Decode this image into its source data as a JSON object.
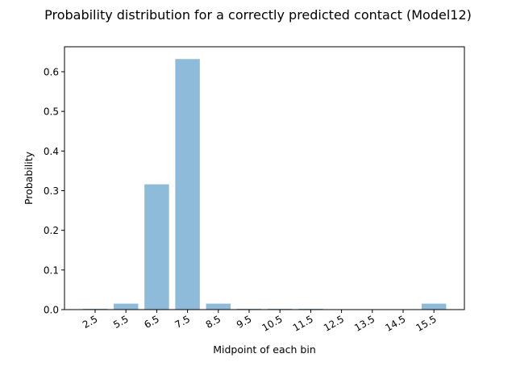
{
  "chart_data": {
    "type": "bar",
    "title": "Probability distribution for a correctly predicted contact (Model12)",
    "xlabel": "Midpoint of each bin",
    "ylabel": "Probability",
    "categories": [
      "2.5",
      "5.5",
      "6.5",
      "7.5",
      "8.5",
      "9.5",
      "10.5",
      "11.5",
      "12.5",
      "13.5",
      "14.5",
      "15.5"
    ],
    "values": [
      0.002,
      0.015,
      0.316,
      0.632,
      0.015,
      0.002,
      0.002,
      0.002,
      0.0,
      0.0,
      0.0,
      0.015
    ],
    "ylim": [
      0,
      0.663
    ],
    "yticks": [
      0.0,
      0.1,
      0.2,
      0.3,
      0.4,
      0.5,
      0.6
    ],
    "ytick_labels": [
      "0.0",
      "0.1",
      "0.2",
      "0.3",
      "0.4",
      "0.5",
      "0.6"
    ],
    "grid": false,
    "bar_color": "#8fbbda",
    "xtick_rotation_deg": -30
  }
}
